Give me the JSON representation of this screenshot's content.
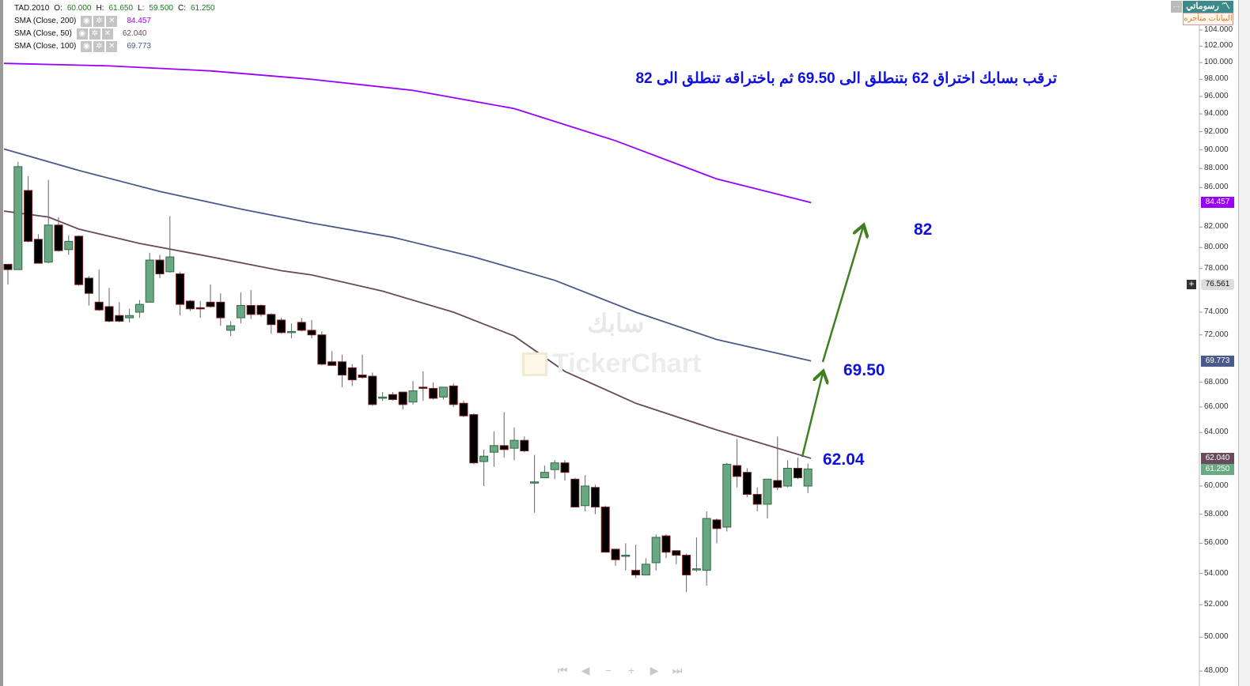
{
  "legend": {
    "symbol": "TAD.2010",
    "ohlc": {
      "o_label": "O:",
      "o": "60.000",
      "h_label": "H:",
      "h": "61.650",
      "l_label": "L:",
      "l": "59.500",
      "c_label": "C:",
      "c": "61.250"
    },
    "indicators": [
      {
        "label": "SMA  (Close, 200)",
        "value": "84.457",
        "color": "#9900ff"
      },
      {
        "label": "SMA  (Close, 50)",
        "value": "62.040",
        "color": "#6a4a5e"
      },
      {
        "label": "SMA  (Close, 100)",
        "value": "69.773",
        "color": "#4a5a8a"
      }
    ],
    "icons": [
      "eye-icon",
      "gear-icon",
      "close-icon"
    ]
  },
  "branding": {
    "logo": "رسوماتي",
    "more": "...",
    "delayed": "البيانات متأخره",
    "watermark_ar": "سابك",
    "watermark_en": "TickerChart"
  },
  "annotation": {
    "note": "ترقب بسابك اختراق 62 بتنطلق الى 69.50 ثم باختراقه تنطلق الى 82",
    "levels": [
      "62.04",
      "69.50",
      "82"
    ],
    "arrow_color": "#3f7f1f"
  },
  "nav": {
    "first": "⏮",
    "prev": "◀",
    "zoom_out": "−",
    "zoom_in": "+",
    "next": "▶",
    "last": "⏭"
  },
  "price_tags": {
    "sma200": "84.457",
    "crosshair": "76.561",
    "sma100": "69.773",
    "sma50": "62.040",
    "last": "61.250"
  },
  "chart_data": {
    "type": "candlestick",
    "y_scale": "log",
    "ylim": [
      48,
      104
    ],
    "yticks": [
      "104.000",
      "102.000",
      "100.000",
      "98.000",
      "96.000",
      "94.000",
      "92.000",
      "90.000",
      "88.000",
      "86.000",
      "82.000",
      "80.000",
      "78.000",
      "74.000",
      "72.000",
      "68.000",
      "66.000",
      "64.000",
      "60.000",
      "58.000",
      "56.000",
      "54.000",
      "52.000",
      "50.000",
      "48.000"
    ],
    "colors": {
      "up_fill": "#6aa884",
      "up_border": "#2d6a45",
      "down_fill": "#000000",
      "down_border": "#7a2020",
      "wick": "#666666"
    },
    "candles": [
      [
        78.4,
        78.4,
        76.5,
        77.9
      ],
      [
        77.9,
        88.7,
        77.9,
        88.2
      ],
      [
        85.7,
        87.2,
        80.5,
        80.6
      ],
      [
        80.8,
        81.3,
        78.5,
        78.5
      ],
      [
        78.6,
        86.8,
        78.5,
        82.2
      ],
      [
        82.2,
        83.0,
        79.6,
        79.7
      ],
      [
        79.8,
        81.2,
        79.3,
        80.6
      ],
      [
        81.1,
        81.2,
        76.4,
        76.5
      ],
      [
        77.1,
        77.3,
        74.6,
        75.7
      ],
      [
        74.9,
        77.9,
        74.1,
        74.2
      ],
      [
        74.5,
        76.2,
        73.1,
        73.2
      ],
      [
        73.7,
        74.9,
        73.1,
        73.2
      ],
      [
        73.5,
        74.3,
        73.1,
        73.7
      ],
      [
        74.0,
        75.1,
        73.5,
        74.7
      ],
      [
        74.9,
        79.5,
        74.9,
        78.8
      ],
      [
        78.8,
        79.3,
        77.1,
        77.5
      ],
      [
        77.7,
        83.1,
        77.6,
        79.1
      ],
      [
        77.5,
        77.7,
        73.7,
        74.7
      ],
      [
        75.0,
        75.1,
        74.1,
        74.3
      ],
      [
        74.4,
        75.0,
        73.5,
        74.3
      ],
      [
        74.9,
        76.5,
        74.4,
        74.5
      ],
      [
        74.9,
        75.7,
        72.8,
        73.5
      ],
      [
        72.4,
        73.2,
        71.9,
        72.8
      ],
      [
        73.5,
        75.8,
        73.0,
        74.6
      ],
      [
        74.6,
        76.0,
        73.4,
        73.8
      ],
      [
        74.6,
        74.7,
        73.6,
        73.8
      ],
      [
        73.8,
        73.9,
        72.1,
        72.9
      ],
      [
        73.3,
        73.5,
        72.1,
        72.2
      ],
      [
        72.25,
        73.0,
        71.7,
        72.3
      ],
      [
        73.1,
        73.5,
        72.3,
        72.4
      ],
      [
        72.4,
        73.3,
        71.7,
        72.0
      ],
      [
        72.0,
        72.3,
        69.4,
        69.5
      ],
      [
        69.7,
        70.6,
        69.4,
        69.4
      ],
      [
        69.7,
        70.3,
        67.6,
        68.6
      ],
      [
        69.2,
        69.5,
        67.7,
        68.2
      ],
      [
        68.6,
        70.3,
        68.3,
        68.4
      ],
      [
        68.5,
        68.8,
        66.1,
        66.2
      ],
      [
        66.7,
        67.2,
        66.5,
        66.8
      ],
      [
        67.0,
        67.2,
        66.5,
        66.6
      ],
      [
        67.2,
        67.2,
        65.8,
        66.2
      ],
      [
        66.4,
        68.1,
        66.2,
        67.3
      ],
      [
        67.6,
        68.9,
        66.5,
        67.5
      ],
      [
        67.5,
        68.0,
        66.6,
        66.7
      ],
      [
        66.8,
        67.6,
        66.6,
        67.6
      ],
      [
        67.7,
        67.9,
        66.0,
        66.2
      ],
      [
        66.3,
        66.5,
        65.2,
        65.3
      ],
      [
        65.4,
        65.5,
        61.6,
        61.7
      ],
      [
        61.8,
        62.7,
        60.0,
        62.2
      ],
      [
        62.5,
        64.1,
        61.4,
        63.0
      ],
      [
        63.0,
        65.6,
        62.1,
        62.7
      ],
      [
        62.8,
        64.4,
        61.9,
        63.4
      ],
      [
        63.4,
        63.7,
        62.5,
        62.6
      ],
      [
        60.25,
        62.3,
        58.1,
        60.3
      ],
      [
        60.6,
        61.5,
        60.6,
        61.0
      ],
      [
        61.2,
        61.9,
        60.5,
        61.7
      ],
      [
        61.7,
        61.9,
        60.4,
        61.0
      ],
      [
        60.5,
        60.6,
        58.5,
        58.5
      ],
      [
        58.6,
        60.8,
        58.2,
        60.0
      ],
      [
        59.9,
        60.1,
        58.0,
        58.5
      ],
      [
        58.5,
        58.6,
        55.4,
        55.4
      ],
      [
        55.6,
        55.6,
        54.5,
        54.9
      ],
      [
        55.15,
        56.0,
        54.2,
        55.2
      ],
      [
        54.2,
        55.9,
        53.7,
        53.9
      ],
      [
        53.9,
        55.0,
        53.9,
        54.6
      ],
      [
        54.7,
        56.6,
        54.2,
        56.4
      ],
      [
        56.5,
        56.6,
        55.0,
        55.4
      ],
      [
        55.5,
        55.5,
        54.6,
        55.2
      ],
      [
        55.2,
        55.3,
        52.8,
        53.9
      ],
      [
        54.25,
        56.4,
        54.1,
        54.3
      ],
      [
        54.2,
        58.2,
        53.2,
        57.7
      ],
      [
        57.6,
        57.7,
        56.0,
        57.0
      ],
      [
        57.1,
        61.7,
        56.8,
        61.6
      ],
      [
        61.5,
        63.5,
        59.9,
        60.7
      ],
      [
        61.0,
        61.3,
        59.2,
        59.4
      ],
      [
        59.4,
        59.9,
        58.2,
        58.7
      ],
      [
        58.7,
        60.5,
        57.7,
        60.5
      ],
      [
        60.4,
        63.7,
        59.7,
        59.9
      ],
      [
        60.0,
        61.9,
        59.9,
        61.3
      ],
      [
        61.3,
        62.1,
        60.5,
        60.6
      ],
      [
        60.0,
        61.65,
        59.5,
        61.25
      ]
    ],
    "series": [
      {
        "name": "SMA  (Close, 200)",
        "color": "#9900ff",
        "points": [
          [
            0,
            99.9
          ],
          [
            10,
            99.6
          ],
          [
            20,
            99.0
          ],
          [
            30,
            98.0
          ],
          [
            40,
            96.7
          ],
          [
            50,
            94.6
          ],
          [
            60,
            91.0
          ],
          [
            70,
            86.9
          ],
          [
            79,
            84.457
          ]
        ]
      },
      {
        "name": "SMA  (Close, 100)",
        "color": "#4a5a8a",
        "points": [
          [
            0,
            90.1
          ],
          [
            7,
            87.8
          ],
          [
            15,
            85.6
          ],
          [
            23,
            83.8
          ],
          [
            30,
            82.4
          ],
          [
            38,
            81.0
          ],
          [
            46,
            79.1
          ],
          [
            54,
            76.9
          ],
          [
            62,
            74.0
          ],
          [
            70,
            71.6
          ],
          [
            79,
            69.773
          ]
        ]
      },
      {
        "name": "SMA  (Close, 50)",
        "color": "#6a4a5e",
        "points": [
          [
            0,
            83.6
          ],
          [
            4,
            83.0
          ],
          [
            7,
            81.8
          ],
          [
            13,
            80.4
          ],
          [
            19,
            79.3
          ],
          [
            27,
            77.8
          ],
          [
            30,
            77.4
          ],
          [
            37,
            75.9
          ],
          [
            44,
            74.0
          ],
          [
            50,
            71.9
          ],
          [
            55,
            68.9
          ],
          [
            62,
            66.3
          ],
          [
            70,
            64.2
          ],
          [
            79,
            62.04
          ]
        ]
      }
    ]
  }
}
